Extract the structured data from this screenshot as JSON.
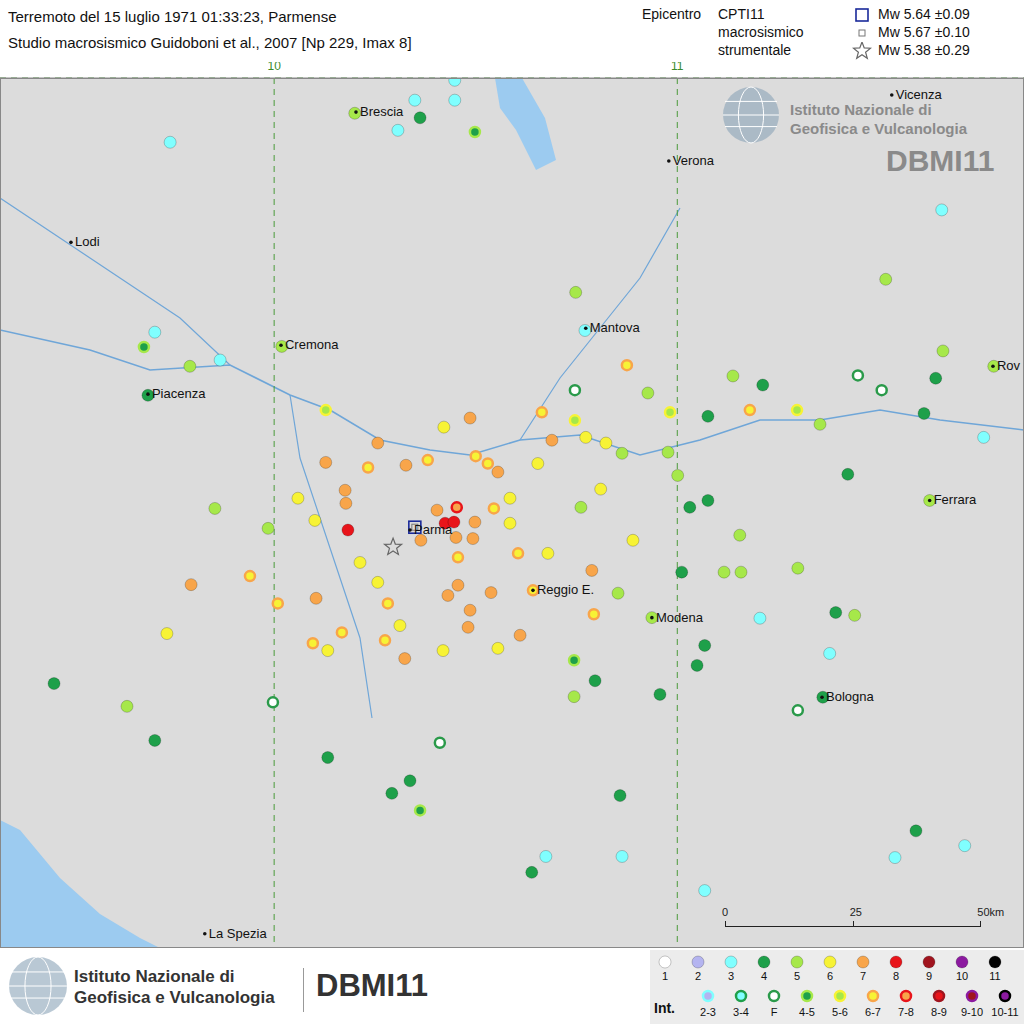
{
  "chart_data": {
    "type": "scatter",
    "title": "Terremoto del 15 luglio 1971  01:33:23,  Parmense",
    "subtitle": "Studio macrosismico  Guidoboni et al., 2007  [Np 229,  Imax 8]",
    "xlim": [
      9.32,
      11.86
    ],
    "ylim": [
      44.07,
      45.6
    ],
    "xticks": [
      10,
      11
    ],
    "yticks": [
      45
    ],
    "tick_labels": "x",
    "grid": true,
    "legend": "bottom",
    "legend_title": "Int.",
    "epicentre_title": "Epicentro",
    "epicentres": [
      {
        "name": "CPTI11",
        "label": "Mw 5.64 ±0.09",
        "marker": "square",
        "x": 10.349,
        "y": 44.81
      },
      {
        "name": "macrosismico",
        "label": "Mw 5.67 ±0.10",
        "marker": "square",
        "x": 10.349,
        "y": 44.81
      },
      {
        "name": "strumentale",
        "label": "Mw 5.38 ±0.29",
        "marker": "star",
        "x": 10.295,
        "y": 44.775
      }
    ],
    "logo": {
      "institute": [
        "Istituto Nazionale di",
        "Geofisica e Vulcanologia"
      ],
      "database": "DBMI11"
    },
    "scale_bar": [
      {
        "value": 0,
        "label": "0"
      },
      {
        "value": 25,
        "label": "25"
      },
      {
        "value": 50,
        "label": "50km"
      }
    ],
    "annotations": [
      {
        "text": "Brescia",
        "x": 10.203,
        "y": 45.54
      },
      {
        "text": "Verona",
        "x": 10.979,
        "y": 45.454
      },
      {
        "text": "Vicenza",
        "x": 11.532,
        "y": 45.57
      },
      {
        "text": "Lodi",
        "x": 9.496,
        "y": 45.311
      },
      {
        "text": "Cremona",
        "x": 10.017,
        "y": 45.13
      },
      {
        "text": "Mantova",
        "x": 10.773,
        "y": 45.16
      },
      {
        "text": "Piacenza",
        "x": 9.687,
        "y": 45.044
      },
      {
        "text": "Parma",
        "x": 10.337,
        "y": 44.805
      },
      {
        "text": "Reggio E.",
        "x": 10.642,
        "y": 44.699
      },
      {
        "text": "Modena",
        "x": 10.937,
        "y": 44.651
      },
      {
        "text": "Ferrara",
        "x": 11.626,
        "y": 44.857
      },
      {
        "text": "Bologna",
        "x": 11.359,
        "y": 44.511
      },
      {
        "text": "Rov",
        "x": 11.783,
        "y": 45.093
      },
      {
        "text": "La Spezia",
        "x": 9.828,
        "y": 44.095
      }
    ],
    "series": [
      {
        "name": "1",
        "color": "#ffffff",
        "x": [],
        "y": []
      },
      {
        "name": "2",
        "color": "#b4b4f0",
        "x": [],
        "y": []
      },
      {
        "name": "3",
        "color": "#80ffff",
        "x": [
          10.448,
          10.448,
          10.307,
          9.742,
          9.704,
          9.866,
          11.656,
          10.771,
          11.76,
          11.378,
          11.205,
          10.674,
          10.863,
          11.068,
          11.54,
          11.713,
          10.349
        ],
        "y": [
          45.596,
          45.561,
          45.508,
          45.487,
          45.153,
          45.104,
          45.368,
          45.156,
          44.968,
          44.588,
          44.65,
          44.231,
          44.231,
          44.171,
          44.229,
          44.25,
          45.561
        ]
      },
      {
        "name": "4",
        "color": "#1ea04a",
        "x": [
          10.362,
          9.687,
          11.076,
          11.423,
          11.031,
          11.076,
          11.212,
          11.641,
          11.612,
          11.393,
          11.068,
          11.049,
          10.957,
          11.361,
          10.796,
          10.639,
          10.858,
          10.292,
          10.337,
          10.133,
          9.704,
          9.454,
          11.592,
          11.011
        ],
        "y": [
          45.53,
          45.042,
          45.005,
          44.903,
          44.845,
          44.857,
          45.06,
          45.072,
          45.01,
          44.66,
          44.602,
          44.567,
          44.516,
          44.511,
          44.54,
          44.203,
          44.338,
          44.342,
          44.364,
          44.405,
          44.435,
          44.535,
          44.276,
          44.731
        ]
      },
      {
        "name": "5",
        "color": "#a6e84a",
        "x": [
          10.2,
          10.019,
          9.791,
          10.748,
          11.517,
          11.785,
          11.659,
          10.927,
          11.138,
          11.354,
          10.977,
          11.001,
          10.863,
          10.761,
          11.155,
          11.299,
          11.116,
          11.158,
          10.937,
          10.853,
          10.744,
          9.635,
          9.853,
          9.985,
          11.44,
          11.626
        ],
        "y": [
          45.538,
          45.128,
          45.093,
          45.223,
          45.246,
          45.093,
          45.12,
          45.046,
          45.076,
          44.991,
          44.942,
          44.901,
          44.94,
          44.845,
          44.796,
          44.738,
          44.731,
          44.731,
          44.651,
          44.694,
          44.512,
          44.495,
          44.843,
          44.808,
          44.655,
          44.857
        ]
      },
      {
        "name": "6",
        "color": "#f7f335",
        "x": [
          10.421,
          10.059,
          10.101,
          10.213,
          10.257,
          10.312,
          10.133,
          9.734,
          10.419,
          10.555,
          10.679,
          10.81,
          10.89,
          10.654,
          10.585,
          10.585,
          10.823,
          10.773
        ],
        "y": [
          44.986,
          44.861,
          44.822,
          44.748,
          44.713,
          44.637,
          44.593,
          44.623,
          44.593,
          44.597,
          44.764,
          44.877,
          44.787,
          44.922,
          44.817,
          44.861,
          44.958,
          44.968
        ]
      },
      {
        "name": "7",
        "color": "#f8a54a",
        "x": [
          10.257,
          10.327,
          10.176,
          10.178,
          10.128,
          10.486,
          10.689,
          10.555,
          10.404,
          10.364,
          10.451,
          10.493,
          10.498,
          10.456,
          10.538,
          10.486,
          10.431,
          10.104,
          10.324,
          10.481,
          10.61,
          10.788,
          9.794
        ],
        "y": [
          44.958,
          44.919,
          44.875,
          44.852,
          44.924,
          45.002,
          44.963,
          44.907,
          44.84,
          44.787,
          44.792,
          44.79,
          44.819,
          44.708,
          44.695,
          44.664,
          44.69,
          44.685,
          44.579,
          44.634,
          44.62,
          44.734,
          44.709
        ]
      },
      {
        "name": "8",
        "color": "#e8141a",
        "x": [
          10.183,
          10.424,
          10.446
        ],
        "y": [
          44.805,
          44.817,
          44.819
        ]
      },
      {
        "name": "9",
        "color": "#a0141e",
        "x": [],
        "y": []
      },
      {
        "name": "10",
        "color": "#8c1aa0",
        "x": [],
        "y": []
      },
      {
        "name": "11",
        "color": "#000000",
        "x": [],
        "y": []
      },
      {
        "name": "2-3",
        "color": "#b4b4f0",
        "x": [],
        "y": []
      },
      {
        "name": "3-4",
        "color": "#80ffff",
        "x": [],
        "y": []
      },
      {
        "name": "F",
        "color": "#ffffff",
        "x": [
          10.746,
          11.299,
          9.997,
          11.507,
          11.448,
          10.411
        ],
        "y": [
          45.051,
          44.488,
          44.502,
          45.051,
          45.077,
          44.431
        ]
      },
      {
        "name": "4-5",
        "color": "#1ea04a",
        "x": [
          10.744,
          10.362,
          10.498,
          9.677
        ],
        "y": [
          44.576,
          44.312,
          45.505,
          45.127
        ]
      },
      {
        "name": "5-6",
        "color": "#a6e84a",
        "x": [
          10.128,
          10.746,
          10.982,
          11.297
        ],
        "y": [
          45.016,
          44.998,
          45.012,
          45.016
        ]
      },
      {
        "name": "6-7",
        "color": "#f7f335",
        "x": [
          10.381,
          10.233,
          10.5,
          10.53,
          10.664,
          11.18,
          10.875,
          10.605,
          10.456,
          10.282,
          10.275,
          10.168,
          10.096,
          10.009,
          9.94,
          10.642,
          10.793,
          10.545
        ],
        "y": [
          44.928,
          44.915,
          44.935,
          44.922,
          45.012,
          45.016,
          45.095,
          44.764,
          44.757,
          44.676,
          44.611,
          44.625,
          44.606,
          44.676,
          44.724,
          44.699,
          44.657,
          44.843
        ]
      },
      {
        "name": "7-8",
        "color": "#f8a54a",
        "x": [
          10.453
        ],
        "y": [
          44.845
        ]
      },
      {
        "name": "8-9",
        "color": "#e8141a",
        "x": [],
        "y": []
      },
      {
        "name": "9-10",
        "color": "#a0141e",
        "x": [],
        "y": []
      },
      {
        "name": "10-11",
        "color": "#8c1aa0",
        "x": [],
        "y": []
      }
    ]
  }
}
